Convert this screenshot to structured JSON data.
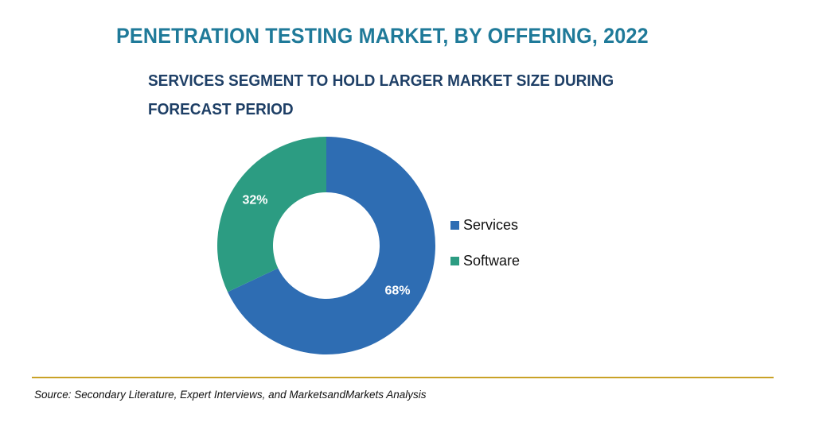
{
  "header": {
    "title": "PENETRATION TESTING MARKET, BY OFFERING, 2022",
    "subtitle_line1": "SERVICES SEGMENT TO HOLD LARGER MARKET SIZE DURING",
    "subtitle_line2": "FORECAST PERIOD"
  },
  "chart_data": {
    "type": "pie",
    "variant": "donut",
    "categories": [
      "Services",
      "Software"
    ],
    "values": [
      68,
      32
    ],
    "data_labels": [
      "68%",
      "32%"
    ],
    "colors": [
      "#2e6db3",
      "#2c9c82"
    ],
    "legend_placement": "right"
  },
  "legend": {
    "items": [
      {
        "label": "Services",
        "color": "#2e6db3"
      },
      {
        "label": "Software",
        "color": "#2c9c82"
      }
    ]
  },
  "footer": {
    "source": "Source: Secondary Literature, Expert Interviews, and MarketsandMarkets Analysis",
    "rule_color": "#c9a227"
  }
}
